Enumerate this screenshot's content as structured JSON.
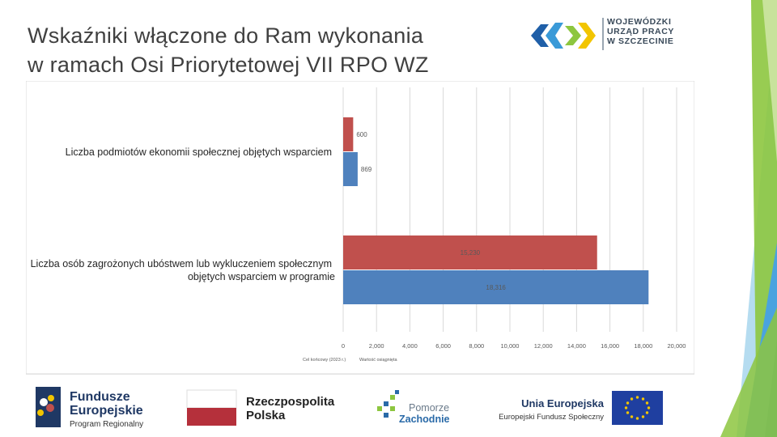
{
  "slide": {
    "title_line1": "Wskaźniki włączone do Ram wykonania",
    "title_line2": "w ramach Osi Priorytetowej VII RPO WZ"
  },
  "logos": {
    "wup": [
      "WOJEWÓDZKI",
      "URZĄD PRACY",
      "W SZCZECINIE"
    ],
    "fe_line1": "Fundusze",
    "fe_line2": "Europejskie",
    "fe_line3": "Program Regionalny",
    "rp_line1": "Rzeczpospolita",
    "rp_line2": "Polska",
    "pz_line1": "Pomorze",
    "pz_line2": "Zachodnie",
    "ue_line1": "Unia Europejska",
    "ue_line2": "Europejski Fundusz Społeczny"
  },
  "colors": {
    "target_series": "#c0504d",
    "achieved_series": "#4f81bd",
    "deco_green": "#8dc63f",
    "deco_blue": "#4aa3df"
  },
  "chart_data": {
    "type": "bar",
    "orientation": "horizontal",
    "categories": [
      "Liczba podmiotów ekonomii społecznej objętych wsparciem",
      "Liczba osób zagrożonych ubóstwem lub wykluczeniem społecznym objętych wsparciem w programie"
    ],
    "category_lines": [
      [
        "Liczba podmiotów ekonomii społecznej objętych wsparciem"
      ],
      [
        "Liczba osób zagrożonych ubóstwem lub wykluczeniem społecznym",
        "objętych wsparciem w programie"
      ]
    ],
    "series": [
      {
        "name": "Cel końcowy (2023 r.)",
        "values": [
          600,
          15230
        ],
        "labels": [
          "600",
          "15,230"
        ],
        "color": "#c0504d"
      },
      {
        "name": "Wartość osiągnięta",
        "values": [
          869,
          18316
        ],
        "labels": [
          "869",
          "18,316"
        ],
        "color": "#4f81bd"
      }
    ],
    "xlim": [
      0,
      20000
    ],
    "xticks": [
      0,
      2000,
      4000,
      6000,
      8000,
      10000,
      12000,
      14000,
      16000,
      18000,
      20000
    ],
    "xtick_labels": [
      "0",
      "2,000",
      "4,000",
      "6,000",
      "8,000",
      "10,000",
      "12,000",
      "14,000",
      "16,000",
      "18,000",
      "20,000"
    ],
    "grid": true,
    "legend": "bottom-left"
  }
}
